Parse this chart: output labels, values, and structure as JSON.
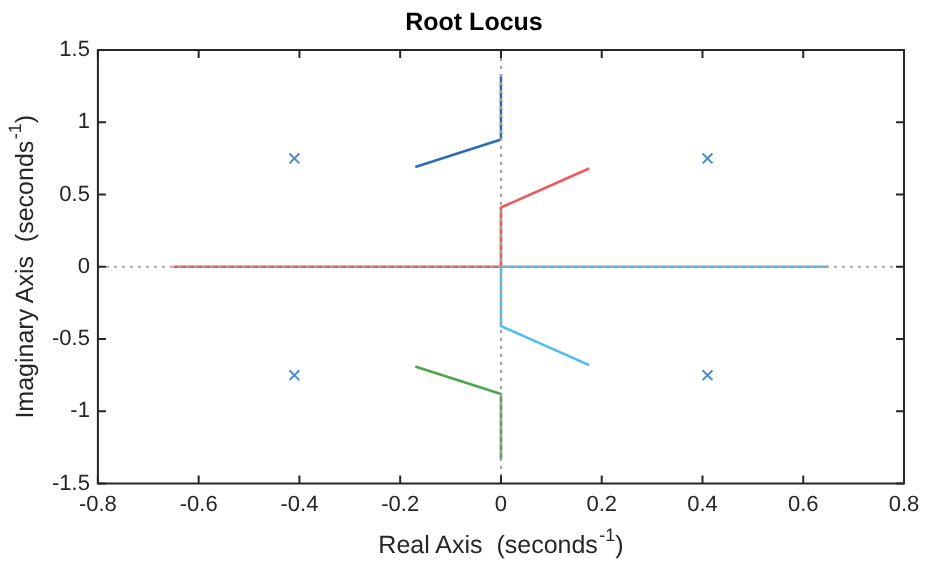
{
  "chart_data": {
    "type": "line",
    "title": "Root Locus",
    "xlabel": "Real Axis  (seconds$^{-1}$)",
    "ylabel": "Imaginary Axis  (seconds$^{-1}$)",
    "series": [
      {
        "color": "#2a6fb5",
        "x": [
          -0.17,
          0,
          0
        ],
        "values": [
          0.69,
          0.88,
          1.33
        ]
      },
      {
        "color": "#f0595a",
        "x": [
          0.175,
          0,
          0,
          -0.65
        ],
        "values": [
          0.68,
          0.41,
          0,
          0
        ]
      },
      {
        "color": "#4dbeee",
        "x": [
          0.65,
          0,
          0,
          0.175
        ],
        "values": [
          0,
          0,
          -0.41,
          -0.68
        ]
      },
      {
        "color": "#4da64d",
        "x": [
          -0.17,
          0,
          0
        ],
        "values": [
          -0.69,
          -0.88,
          -1.33
        ]
      },
      {
        "type": "scatter",
        "color": "#4a8bd0",
        "marker": "cross",
        "x": [
          -0.41,
          -0.41,
          0.41,
          0.41
        ],
        "values": [
          0.75,
          -0.75,
          0.75,
          -0.75
        ]
      }
    ],
    "xlim": [
      -0.8,
      0.8
    ],
    "xticks": [
      -0.8,
      -0.6,
      -0.4,
      -0.2,
      0,
      0.2,
      0.4,
      0.6,
      0.8
    ],
    "ylim": [
      -1.5,
      1.5
    ],
    "yticks": [
      -1.5,
      -1,
      -0.5,
      0,
      0.5,
      1,
      1.5
    ],
    "ref_lines": [
      {
        "axis": "x",
        "value": 0,
        "color": "#a0a0a0",
        "line_style": "dotted"
      },
      {
        "axis": "y",
        "value": 0,
        "color": "#a8a8a8",
        "line_style": "dotted"
      }
    ],
    "grid": false,
    "legend": false,
    "marker": "none",
    "line_style": "solid"
  }
}
